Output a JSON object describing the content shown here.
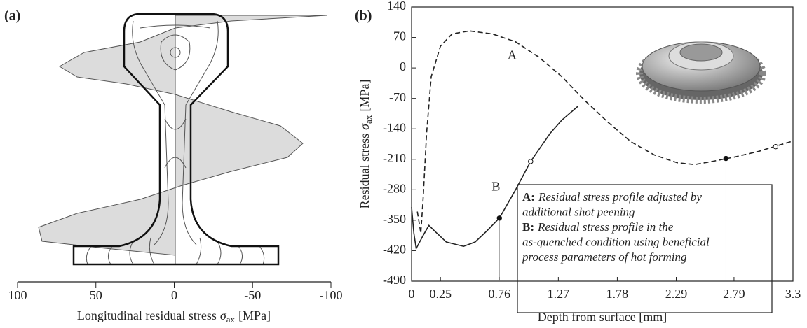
{
  "chart_data": [
    {
      "type": "diagram",
      "panel_label": "(a)",
      "xlabel": {
        "text": "Longitudinal residual stress",
        "symbol": "σ",
        "subscript": "ax",
        "unit": "[MPa]"
      },
      "xlim": [
        100,
        -100
      ],
      "xticks": [
        100,
        50,
        0,
        -50,
        -100
      ]
    },
    {
      "type": "line",
      "panel_label": "(b)",
      "xlabel": "Depth from surface [mm]",
      "ylabel": {
        "text": "Residual stress",
        "symbol": "σ",
        "subscript": "ax",
        "unit": "[MPa]"
      },
      "xlim": [
        0,
        3.3
      ],
      "ylim": [
        -490,
        140
      ],
      "xticks": [
        0,
        0.25,
        0.76,
        1.27,
        1.78,
        2.29,
        2.79,
        3.3
      ],
      "yticks": [
        -490,
        -420,
        -350,
        -280,
        -210,
        -140,
        -70,
        0,
        70,
        140
      ],
      "series": [
        {
          "name": "A",
          "color": "#222",
          "dashed": true,
          "x": [
            0.05,
            0.08,
            0.1,
            0.13,
            0.17,
            0.25,
            0.35,
            0.5,
            0.7,
            0.9,
            1.1,
            1.3,
            1.5,
            1.7,
            1.9,
            2.1,
            2.3,
            2.45,
            2.6,
            2.79,
            3.0,
            3.15,
            3.3
          ],
          "values": [
            -330,
            -380,
            -300,
            -150,
            -20,
            50,
            78,
            85,
            78,
            60,
            25,
            -20,
            -75,
            -125,
            -170,
            -200,
            -218,
            -222,
            -215,
            -205,
            -192,
            -180,
            -168
          ]
        },
        {
          "name": "B",
          "color": "#222",
          "dashed": false,
          "x": [
            0,
            0.02,
            0.04,
            0.1,
            0.15,
            0.2,
            0.3,
            0.45,
            0.55,
            0.65,
            0.76,
            0.9,
            1.03,
            1.2,
            1.3,
            1.44
          ],
          "values": [
            -320,
            -380,
            -415,
            -385,
            -362,
            -375,
            -400,
            -410,
            -400,
            -375,
            -345,
            -280,
            -215,
            -150,
            -120,
            -88
          ]
        }
      ],
      "markers": [
        {
          "x": 0.76,
          "y": -345,
          "style": "filled"
        },
        {
          "x": 1.03,
          "y": -215,
          "style": "open"
        },
        {
          "x": 2.72,
          "y": -208,
          "style": "filled"
        },
        {
          "x": 3.15,
          "y": -181,
          "style": "open"
        }
      ],
      "legend": [
        {
          "key": "A:",
          "lines": [
            "Residual stress profile adjusted by",
            "additional shot peening"
          ]
        },
        {
          "key": "B:",
          "lines": [
            "Residual stress profile in the",
            "as-quenched condition using beneficial",
            "process parameters of hot forming"
          ]
        }
      ]
    }
  ]
}
